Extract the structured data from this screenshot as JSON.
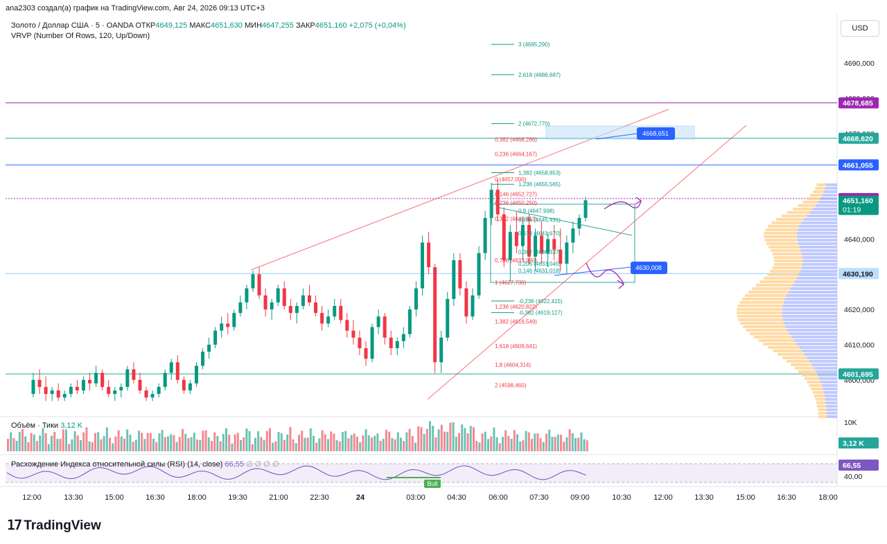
{
  "header": {
    "author_line": "ana2303 создал(а) график на TradingView.com, Авг 24, 2026 09:13 UTC+3"
  },
  "legend": {
    "symbol": "Золото / Доллар США · 5 · OANDA",
    "open_label": "ОТКР",
    "open": "4649,125",
    "high_label": "МАКС",
    "high": "4651,630",
    "low_label": "МИН",
    "low": "4647,255",
    "close_label": "ЗАКР",
    "close": "4651,160",
    "change": "+2,075 (+0,04%)",
    "indicator": "VRVP (Number Of Rows, 120, Up/Down)"
  },
  "currency": "USD",
  "volume_panel": {
    "label": "Объём · Тики",
    "value": "3,12 K",
    "axis_label": "10K",
    "badge": "3,12 K"
  },
  "rsi_panel": {
    "label": "Расхождение Индекса относительной силы (RSI) (14, close)",
    "value": "66,55",
    "placeholders": "∅ ∅ ∅ ∅",
    "axis_label": "40,00",
    "badge": "66,55",
    "bull_label": "Bull"
  },
  "price_axis": {
    "ticks": [
      {
        "price": 4690,
        "label": "4690,000"
      },
      {
        "price": 4680,
        "label": "4680,000"
      },
      {
        "price": 4670,
        "label": "4670,000"
      },
      {
        "price": 4640,
        "label": "4640,000"
      },
      {
        "price": 4620,
        "label": "4620,000"
      },
      {
        "price": 4610,
        "label": "4610,000"
      },
      {
        "price": 4600,
        "label": "4600,000"
      }
    ],
    "badges": [
      {
        "price": 4678.685,
        "label": "4678,685",
        "color": "#9c27b0"
      },
      {
        "price": 4668.62,
        "label": "4668,620",
        "color": "#26a69a"
      },
      {
        "price": 4661.055,
        "label": "4661,055",
        "color": "#2962ff"
      },
      {
        "price": 4651.505,
        "label": "4651,505",
        "color": "#9c27b0"
      },
      {
        "price": 4630.19,
        "label": "4630,190",
        "color": "#bbdefb"
      },
      {
        "price": 4601.695,
        "label": "4601,695",
        "color": "#26a69a"
      }
    ],
    "last_price": {
      "price": 4651.16,
      "label": "4651,160",
      "countdown": "01:19",
      "color": "#089981"
    }
  },
  "time_axis": {
    "labels": [
      "12:00",
      "13:30",
      "15:00",
      "16:30",
      "18:00",
      "19:30",
      "21:00",
      "22:30",
      "24",
      "03:00",
      "04:30",
      "06:00",
      "07:30",
      "09:00",
      "10:30",
      "12:00",
      "13:30",
      "15:00",
      "16:30",
      "18:00"
    ]
  },
  "annotations": {
    "target_label": "4668,651",
    "support_label": "4630,008",
    "fib_upper": [
      {
        "level": "3 (4695,290)",
        "price": 4695.29
      },
      {
        "level": "2,618 (4686,687)",
        "price": 4686.687
      },
      {
        "level": "2 (4672,770)",
        "price": 4672.77
      },
      {
        "level": "1,382 (4658,853)",
        "price": 4658.853
      },
      {
        "level": "1,236 (4655,565)",
        "price": 4655.565
      },
      {
        "level": "-0,236 (4622,415)",
        "price": 4622.415
      },
      {
        "level": "-0,382 (4619,127)",
        "price": 4619.127
      }
    ],
    "fib_lower": [
      {
        "level": "0,382 (4668,286)",
        "price": 4668.286
      },
      {
        "level": "0,236 (4664,167)",
        "price": 4664.167
      },
      {
        "level": "0 (4657,000)",
        "price": 4657.0
      },
      {
        "level": "0,146 (4652,727)",
        "price": 4652.727
      },
      {
        "level": "0,236 (4650,250)",
        "price": 4650.25
      },
      {
        "level": "0,382 (4645,813)",
        "price": 4645.813
      },
      {
        "level": "0,786 (4633,990)",
        "price": 4633.99
      },
      {
        "level": "1 (4627,730)",
        "price": 4627.73
      },
      {
        "level": "1,236 (4620,822)",
        "price": 4620.822
      },
      {
        "level": "1,382 (4616,549)",
        "price": 4616.549
      },
      {
        "level": "1,618 (4609,641)",
        "price": 4609.641
      },
      {
        "level": "1,8 (4604,314)",
        "price": 4604.314
      },
      {
        "level": "2 (4598,460)",
        "price": 4598.46
      }
    ],
    "fib_inner": [
      {
        "level": "0,9 (4647,998)",
        "price": 4647.998
      },
      {
        "level": "0,786 (4645,431)",
        "price": 4645.431
      },
      {
        "level": "0,618 (4641,670)",
        "price": 4641.67
      },
      {
        "level": "0,382 (4636,337)",
        "price": 4636.337
      },
      {
        "level": "0,206 (4633,045)",
        "price": 4633.045
      },
      {
        "level": "0,146 (4631,018)",
        "price": 4631.018
      }
    ]
  },
  "chart_data": {
    "type": "candlestick",
    "symbol": "XAUUSD",
    "timeframe": "5",
    "ylim": [
      4594,
      4702
    ],
    "candles_ohlc": [
      [
        4596,
        4602,
        4595,
        4600
      ],
      [
        4600,
        4603,
        4596,
        4598
      ],
      [
        4598,
        4601,
        4594,
        4596
      ],
      [
        4596,
        4598,
        4594,
        4597
      ],
      [
        4597,
        4599,
        4594,
        4595
      ],
      [
        4595,
        4597,
        4594,
        4596
      ],
      [
        4596,
        4599,
        4595,
        4598
      ],
      [
        4598,
        4600,
        4596,
        4597
      ],
      [
        4597,
        4601,
        4596,
        4600
      ],
      [
        4600,
        4602,
        4597,
        4599
      ],
      [
        4599,
        4604,
        4598,
        4602
      ],
      [
        4602,
        4603,
        4597,
        4598
      ],
      [
        4598,
        4600,
        4595,
        4596
      ],
      [
        4596,
        4598,
        4594,
        4597
      ],
      [
        4597,
        4599,
        4595,
        4598
      ],
      [
        4598,
        4604,
        4597,
        4603
      ],
      [
        4603,
        4605,
        4599,
        4600
      ],
      [
        4600,
        4602,
        4596,
        4597
      ],
      [
        4597,
        4598,
        4594,
        4595
      ],
      [
        4595,
        4597,
        4594,
        4596
      ],
      [
        4596,
        4599,
        4595,
        4598
      ],
      [
        4598,
        4603,
        4597,
        4602
      ],
      [
        4602,
        4606,
        4600,
        4605
      ],
      [
        4605,
        4607,
        4599,
        4600
      ],
      [
        4600,
        4601,
        4596,
        4597
      ],
      [
        4597,
        4600,
        4596,
        4599
      ],
      [
        4599,
        4605,
        4598,
        4604
      ],
      [
        4604,
        4609,
        4603,
        4608
      ],
      [
        4608,
        4612,
        4606,
        4610
      ],
      [
        4610,
        4615,
        4609,
        4614
      ],
      [
        4614,
        4618,
        4612,
        4616
      ],
      [
        4616,
        4619,
        4613,
        4615
      ],
      [
        4615,
        4620,
        4614,
        4619
      ],
      [
        4619,
        4624,
        4618,
        4622
      ],
      [
        4622,
        4627,
        4620,
        4626
      ],
      [
        4626,
        4631,
        4625,
        4630
      ],
      [
        4630,
        4632,
        4623,
        4624
      ],
      [
        4624,
        4626,
        4618,
        4620
      ],
      [
        4620,
        4623,
        4617,
        4622
      ],
      [
        4622,
        4627,
        4621,
        4626
      ],
      [
        4626,
        4628,
        4620,
        4621
      ],
      [
        4621,
        4623,
        4617,
        4619
      ],
      [
        4619,
        4622,
        4616,
        4621
      ],
      [
        4621,
        4626,
        4620,
        4624
      ],
      [
        4624,
        4627,
        4621,
        4622
      ],
      [
        4622,
        4624,
        4618,
        4619
      ],
      [
        4619,
        4621,
        4614,
        4616
      ],
      [
        4616,
        4620,
        4615,
        4618
      ],
      [
        4618,
        4623,
        4617,
        4621
      ],
      [
        4621,
        4623,
        4616,
        4617
      ],
      [
        4617,
        4619,
        4612,
        4614
      ],
      [
        4614,
        4617,
        4610,
        4612
      ],
      [
        4612,
        4614,
        4607,
        4609
      ],
      [
        4609,
        4611,
        4604,
        4606
      ],
      [
        4606,
        4616,
        4605,
        4615
      ],
      [
        4615,
        4620,
        4613,
        4618
      ],
      [
        4618,
        4619,
        4610,
        4612
      ],
      [
        4612,
        4614,
        4607,
        4609
      ],
      [
        4609,
        4612,
        4607,
        4611
      ],
      [
        4611,
        4615,
        4609,
        4613
      ],
      [
        4613,
        4621,
        4612,
        4620
      ],
      [
        4620,
        4628,
        4618,
        4626
      ],
      [
        4626,
        4641,
        4624,
        4639
      ],
      [
        4639,
        4642,
        4630,
        4632
      ],
      [
        4632,
        4633,
        4602,
        4605
      ],
      [
        4605,
        4614,
        4602,
        4612
      ],
      [
        4612,
        4625,
        4611,
        4623
      ],
      [
        4623,
        4636,
        4621,
        4634
      ],
      [
        4634,
        4636,
        4624,
        4626
      ],
      [
        4626,
        4628,
        4616,
        4618
      ],
      [
        4618,
        4626,
        4617,
        4624
      ],
      [
        4624,
        4638,
        4623,
        4636
      ],
      [
        4636,
        4648,
        4634,
        4646
      ],
      [
        4646,
        4656,
        4644,
        4654
      ],
      [
        4654,
        4657,
        4645,
        4647
      ],
      [
        4647,
        4649,
        4632,
        4634
      ],
      [
        4634,
        4644,
        4628,
        4642
      ],
      [
        4642,
        4648,
        4636,
        4638
      ],
      [
        4638,
        4646,
        4634,
        4644
      ],
      [
        4644,
        4647,
        4633,
        4635
      ],
      [
        4635,
        4643,
        4631,
        4641
      ],
      [
        4641,
        4645,
        4633,
        4636
      ],
      [
        4636,
        4642,
        4632,
        4640
      ],
      [
        4640,
        4644,
        4634,
        4637
      ],
      [
        4637,
        4643,
        4631,
        4633
      ],
      [
        4633,
        4641,
        4630,
        4639
      ],
      [
        4639,
        4645,
        4636,
        4643
      ],
      [
        4643,
        4647,
        4641,
        4646
      ],
      [
        4646,
        4652,
        4645,
        4651
      ]
    ],
    "volume_max": 10000,
    "rsi_current": 66.55
  }
}
